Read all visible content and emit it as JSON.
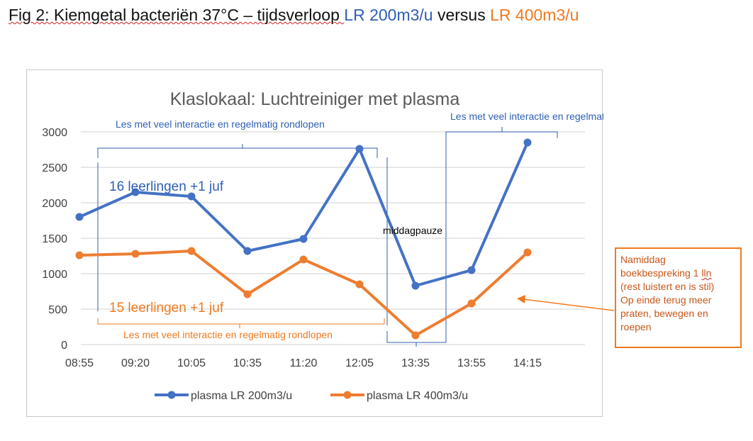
{
  "figure": {
    "caption_prefix": "Fig 2: Kiemgetal bacteriën 37°C – tijdsverloop ",
    "caption_blue": "LR 200m3/u",
    "caption_mid": " versus ",
    "caption_orange": "LR 400m3/u"
  },
  "colors": {
    "series1": "#4472c4",
    "series2": "#ed7d31",
    "grid": "#d9d9d9",
    "axis_text": "#595959"
  },
  "chart_data": {
    "type": "line",
    "title": "Klaslokaal: Luchtreiniger met plasma",
    "categories": [
      "08:55",
      "09:20",
      "10:05",
      "10:35",
      "11:20",
      "12:05",
      "13:35",
      "13:55",
      "14:15"
    ],
    "ylim": [
      0,
      3000
    ],
    "yticks": [
      0,
      500,
      1000,
      1500,
      2000,
      2500,
      3000
    ],
    "grid": true,
    "legend_position": "bottom",
    "series": [
      {
        "name": "plasma LR 200m3/u",
        "values": [
          1800,
          2150,
          2090,
          1320,
          1490,
          2760,
          830,
          1050,
          2850
        ]
      },
      {
        "name": "plasma LR 400m3/u",
        "values": [
          1260,
          1280,
          1320,
          710,
          1200,
          850,
          130,
          580,
          1300
        ]
      }
    ],
    "annotations": {
      "blue_group_label": "16 leerlingen +1 juf",
      "orange_group_label": "15 leerlingen +1 juf",
      "top_bracket_left": "Les met veel interactie en regelmatig rondlopen",
      "top_bracket_right": "Les met veel interactie en regelmatig rondlopen",
      "bottom_bracket_left": "Les met veel interactie en regelmatig rondlopen",
      "pause_label": "middagpauze"
    }
  },
  "callout": {
    "line1": "Namiddag",
    "line2_prefix": "boekbespreking 1 ",
    "line2_squiggle": "lln",
    "line3": "(rest luistert en is stil)",
    "line4": "Op einde terug meer",
    "line5": "praten, bewegen en",
    "line6": "roepen"
  }
}
